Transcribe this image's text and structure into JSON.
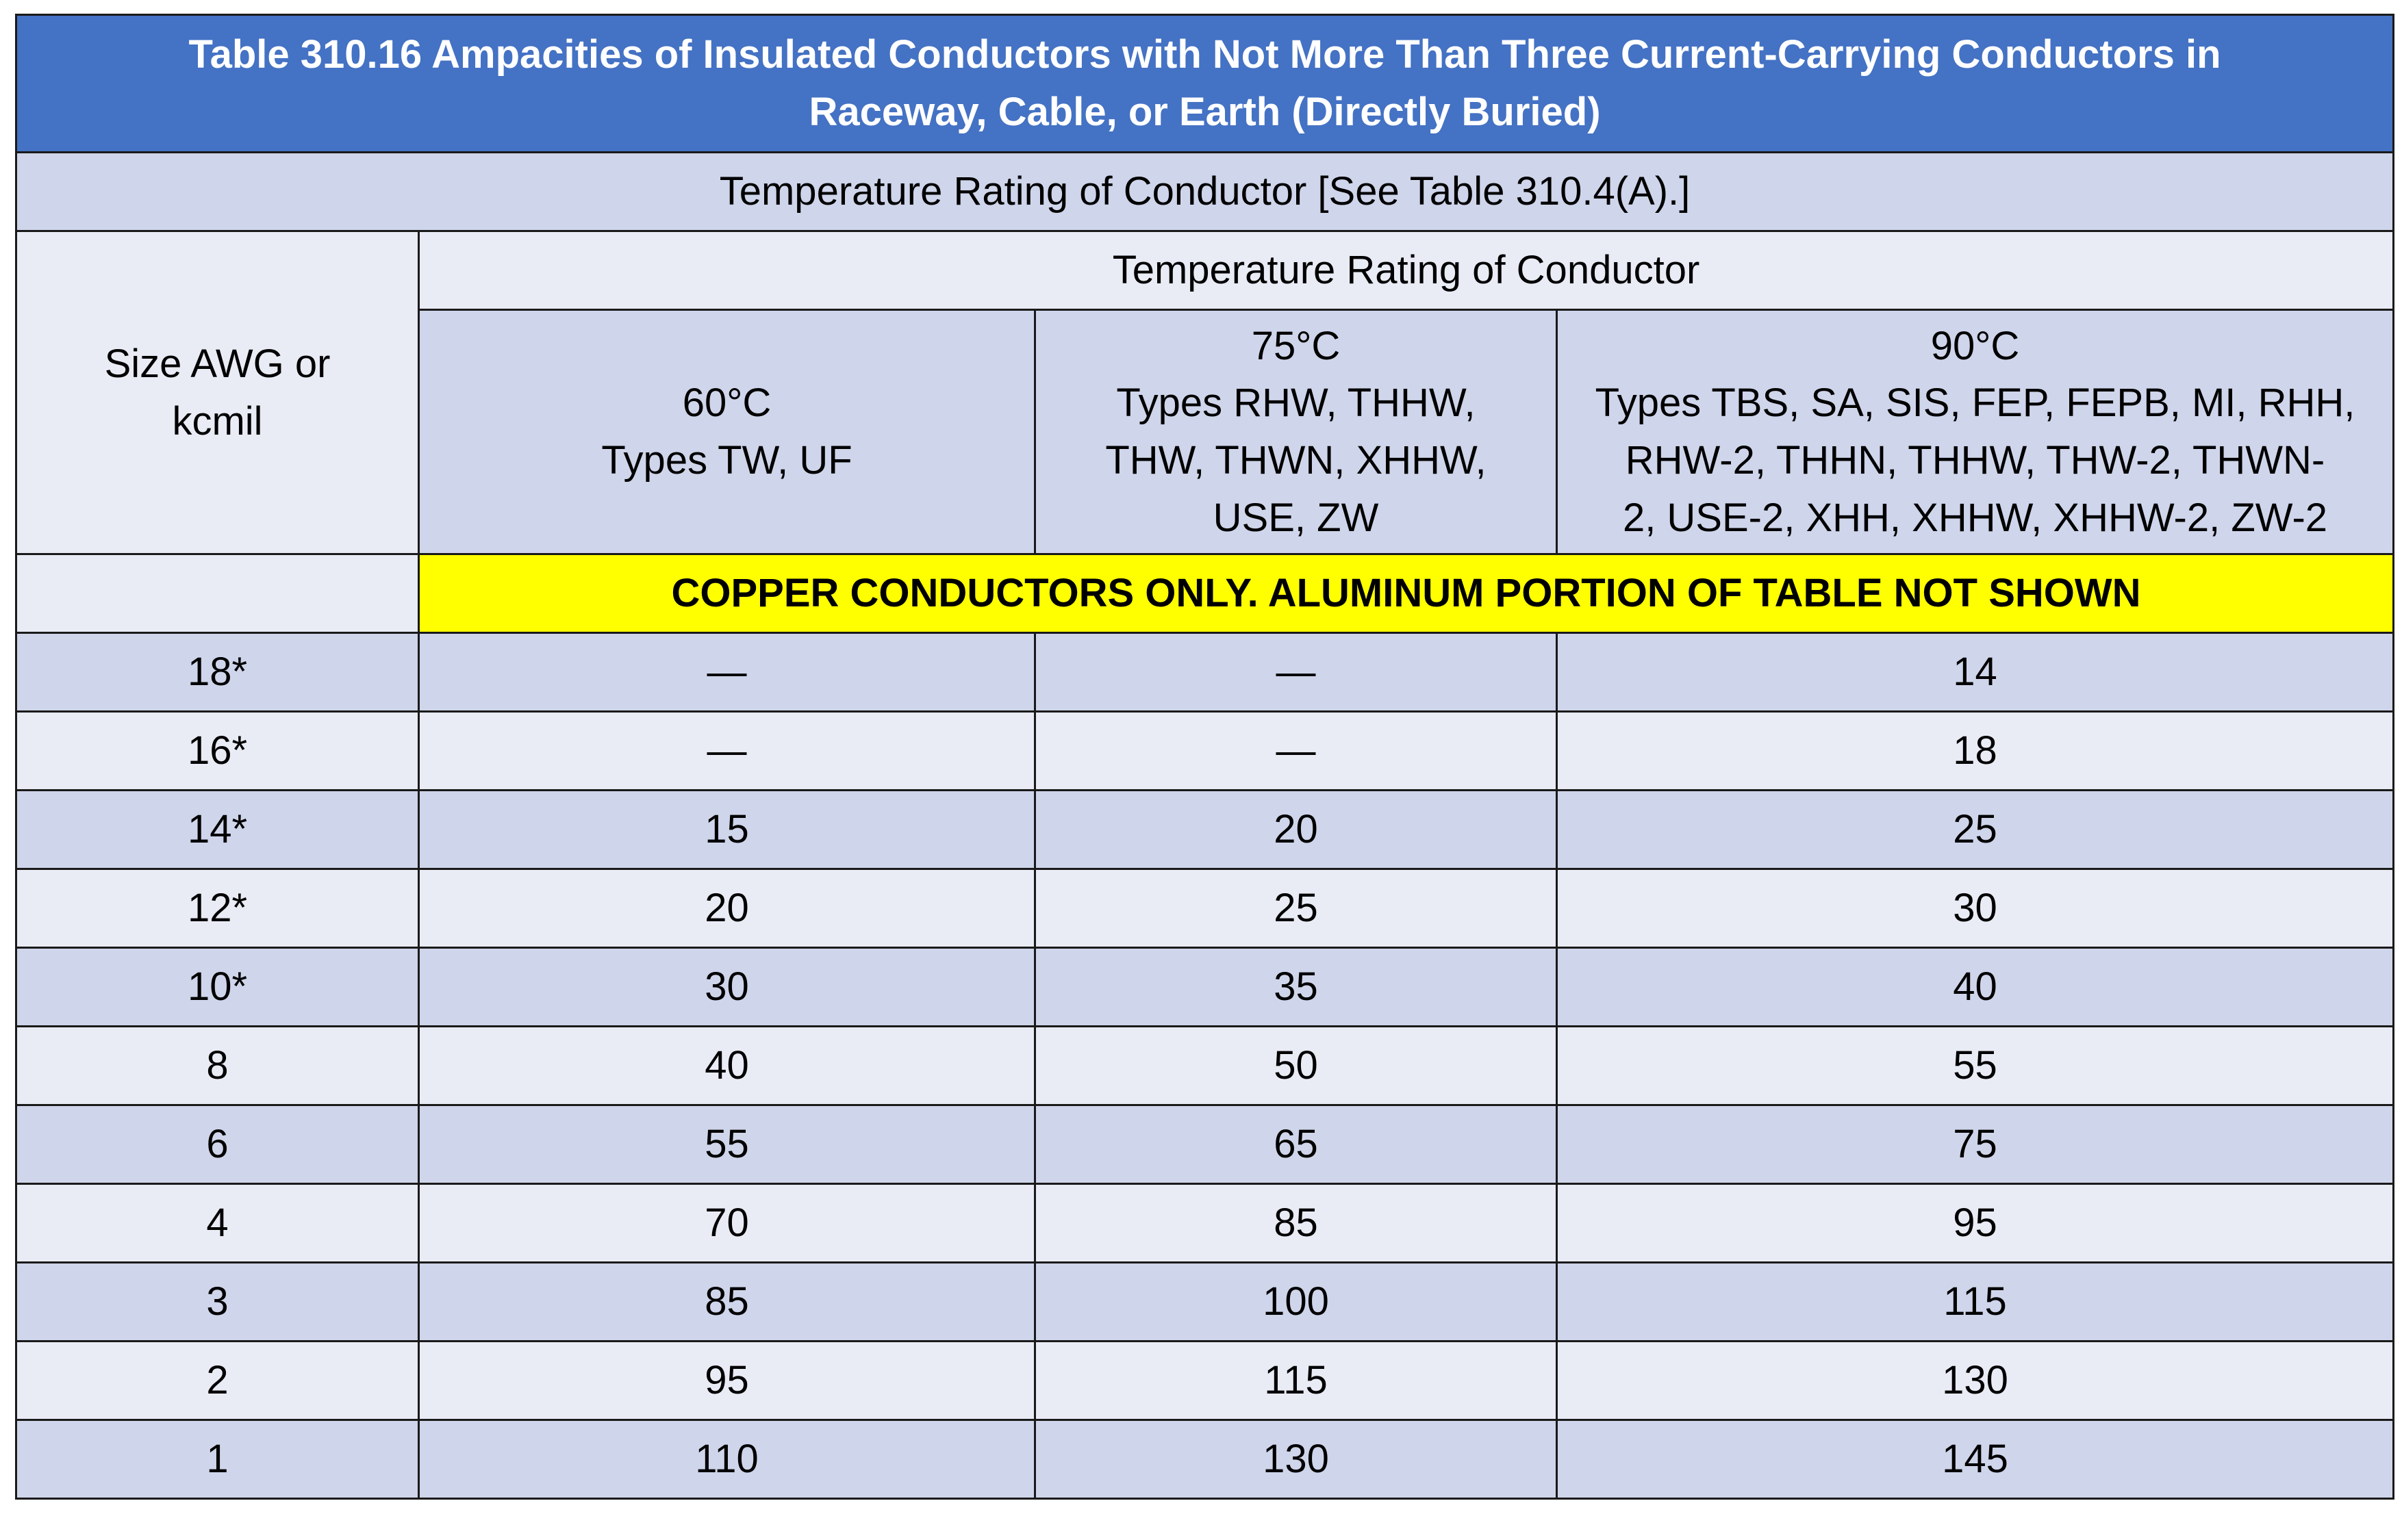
{
  "title": {
    "line1": "Table 310.16 Ampacities of Insulated Conductors with Not More Than Three Current-Carrying Conductors in",
    "line2": "Raceway, Cable, or Earth (Directly Buried)"
  },
  "band_label": "Temperature Rating of Conductor [See Table 310.4(A).]",
  "size_header": {
    "line1": "Size AWG or",
    "line2": "kcmil"
  },
  "group_header": "Temperature Rating of Conductor",
  "columns": [
    {
      "temp": "60°C",
      "types": [
        "Types TW, UF"
      ]
    },
    {
      "temp": "75°C",
      "types": [
        "Types RHW, THHW,",
        "THW, THWN, XHHW,",
        "USE, ZW"
      ]
    },
    {
      "temp": "90°C",
      "types": [
        "Types TBS, SA, SIS, FEP, FEPB, MI, RHH,",
        "RHW-2, THHN, THHW, THW-2, THWN-",
        "2, USE-2, XHH, XHHW, XHHW-2, ZW-2"
      ]
    }
  ],
  "notice": "COPPER CONDUCTORS ONLY. ALUMINUM PORTION OF TABLE NOT SHOWN",
  "rows": [
    {
      "size": "18*",
      "c60": "—",
      "c75": "—",
      "c90": "14"
    },
    {
      "size": "16*",
      "c60": "—",
      "c75": "—",
      "c90": "18"
    },
    {
      "size": "14*",
      "c60": "15",
      "c75": "20",
      "c90": "25"
    },
    {
      "size": "12*",
      "c60": "20",
      "c75": "25",
      "c90": "30"
    },
    {
      "size": "10*",
      "c60": "30",
      "c75": "35",
      "c90": "40"
    },
    {
      "size": "8",
      "c60": "40",
      "c75": "50",
      "c90": "55"
    },
    {
      "size": "6",
      "c60": "55",
      "c75": "65",
      "c90": "75"
    },
    {
      "size": "4",
      "c60": "70",
      "c75": "85",
      "c90": "95"
    },
    {
      "size": "3",
      "c60": "85",
      "c75": "100",
      "c90": "115"
    },
    {
      "size": "2",
      "c60": "95",
      "c75": "115",
      "c90": "130"
    },
    {
      "size": "1",
      "c60": "110",
      "c75": "130",
      "c90": "145"
    }
  ],
  "colors": {
    "title_bg": "#4472c4",
    "row_dark": "#cfd5ea",
    "row_light": "#e9ebf5",
    "notice_bg": "#ffff00"
  }
}
